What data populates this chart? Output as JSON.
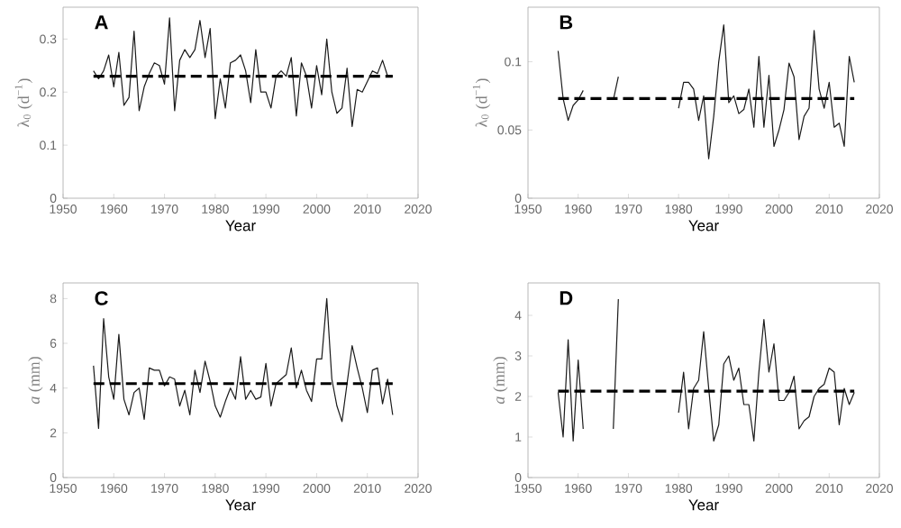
{
  "chart_data": [
    {
      "type": "line",
      "annotations": [
        "A"
      ],
      "xlabel": "Year",
      "ylabel": "λ$_{0}$ (d$^{−1}$)",
      "xlim": [
        1950,
        2020
      ],
      "xticks": [
        1950,
        1960,
        1970,
        1980,
        1990,
        2000,
        2010,
        2020
      ],
      "ylim": [
        0,
        0.36
      ],
      "yticks": [
        0,
        0.1,
        0.2,
        0.3
      ],
      "grid": false,
      "marker": "none",
      "line_style": "solid",
      "x": [
        1956,
        1957,
        1958,
        1959,
        1960,
        1961,
        1962,
        1963,
        1964,
        1965,
        1966,
        1967,
        1968,
        1969,
        1970,
        1971,
        1972,
        1973,
        1974,
        1975,
        1976,
        1977,
        1978,
        1979,
        1980,
        1981,
        1982,
        1983,
        1984,
        1985,
        1986,
        1987,
        1988,
        1989,
        1990,
        1991,
        1992,
        1993,
        1994,
        1995,
        1996,
        1997,
        1998,
        1999,
        2000,
        2001,
        2002,
        2003,
        2004,
        2005,
        2006,
        2007,
        2008,
        2009,
        2010,
        2011,
        2012,
        2013,
        2014,
        2015
      ],
      "series": [
        {
          "color": "#1a1a1a",
          "values": [
            0.24,
            0.225,
            0.24,
            0.27,
            0.21,
            0.275,
            0.175,
            0.19,
            0.315,
            0.165,
            0.21,
            0.235,
            0.255,
            0.25,
            0.215,
            0.34,
            0.165,
            0.26,
            0.28,
            0.265,
            0.28,
            0.335,
            0.265,
            0.32,
            0.15,
            0.225,
            0.17,
            0.255,
            0.26,
            0.27,
            0.24,
            0.18,
            0.28,
            0.2,
            0.2,
            0.17,
            0.23,
            0.24,
            0.23,
            0.265,
            0.155,
            0.255,
            0.23,
            0.17,
            0.25,
            0.195,
            0.3,
            0.2,
            0.16,
            0.17,
            0.245,
            0.135,
            0.205,
            0.2,
            0.22,
            0.24,
            0.235,
            0.26,
            0.23,
            0.23
          ]
        }
      ],
      "ref_lines": [
        {
          "axis": "y",
          "value": 0.23,
          "color": "#000000",
          "line_style": "dashed"
        }
      ]
    },
    {
      "type": "line",
      "annotations": [
        "B"
      ],
      "xlabel": "Year",
      "ylabel": "λ$_{0}$ (d$^{−1}$)",
      "xlim": [
        1950,
        2020
      ],
      "xticks": [
        1950,
        1960,
        1970,
        1980,
        1990,
        2000,
        2010,
        2020
      ],
      "ylim": [
        0,
        0.14
      ],
      "yticks": [
        0,
        0.05,
        0.1
      ],
      "grid": false,
      "marker": "none",
      "line_style": "solid",
      "x": [
        1956,
        1957,
        1958,
        1959,
        1960,
        1961,
        1962,
        1963,
        1964,
        1965,
        1966,
        1967,
        1968,
        1969,
        1970,
        1971,
        1972,
        1973,
        1974,
        1975,
        1976,
        1977,
        1978,
        1979,
        1980,
        1981,
        1982,
        1983,
        1984,
        1985,
        1986,
        1987,
        1988,
        1989,
        1990,
        1991,
        1992,
        1993,
        1994,
        1995,
        1996,
        1997,
        1998,
        1999,
        2000,
        2001,
        2002,
        2003,
        2004,
        2005,
        2006,
        2007,
        2008,
        2009,
        2010,
        2011,
        2012,
        2013,
        2014,
        2015
      ],
      "series": [
        {
          "color": "#1a1a1a",
          "values": [
            0.108,
            0.073,
            0.057,
            0.068,
            0.072,
            0.079,
            null,
            null,
            null,
            null,
            null,
            0.072,
            0.089,
            null,
            null,
            null,
            null,
            null,
            null,
            null,
            null,
            null,
            null,
            null,
            0.066,
            0.085,
            0.085,
            0.08,
            0.057,
            0.075,
            0.029,
            0.06,
            0.1,
            0.127,
            0.07,
            0.075,
            0.062,
            0.065,
            0.08,
            0.052,
            0.104,
            0.052,
            0.09,
            0.038,
            0.05,
            0.065,
            0.099,
            0.089,
            0.043,
            0.06,
            0.066,
            0.123,
            0.08,
            0.066,
            0.085,
            0.052,
            0.055,
            0.038,
            0.104,
            0.085
          ]
        }
      ],
      "ref_lines": [
        {
          "axis": "y",
          "value": 0.073,
          "color": "#000000",
          "line_style": "dashed"
        }
      ]
    },
    {
      "type": "line",
      "annotations": [
        "C"
      ],
      "xlabel": "Year",
      "ylabel": "*a* (mm)",
      "xlim": [
        1950,
        2020
      ],
      "xticks": [
        1950,
        1960,
        1970,
        1980,
        1990,
        2000,
        2010,
        2020
      ],
      "ylim": [
        0,
        8.7
      ],
      "yticks": [
        0,
        2,
        4,
        6,
        8
      ],
      "grid": false,
      "marker": "none",
      "line_style": "solid",
      "x": [
        1956,
        1957,
        1958,
        1959,
        1960,
        1961,
        1962,
        1963,
        1964,
        1965,
        1966,
        1967,
        1968,
        1969,
        1970,
        1971,
        1972,
        1973,
        1974,
        1975,
        1976,
        1977,
        1978,
        1979,
        1980,
        1981,
        1982,
        1983,
        1984,
        1985,
        1986,
        1987,
        1988,
        1989,
        1990,
        1991,
        1992,
        1993,
        1994,
        1995,
        1996,
        1997,
        1998,
        1999,
        2000,
        2001,
        2002,
        2003,
        2004,
        2005,
        2006,
        2007,
        2008,
        2009,
        2010,
        2011,
        2012,
        2013,
        2014,
        2015
      ],
      "series": [
        {
          "color": "#1a1a1a",
          "values": [
            5.0,
            2.2,
            7.1,
            4.5,
            3.5,
            6.4,
            3.5,
            2.8,
            3.8,
            4.0,
            2.6,
            4.9,
            4.8,
            4.8,
            4.1,
            4.5,
            4.4,
            3.2,
            3.9,
            2.8,
            4.8,
            3.8,
            5.2,
            4.3,
            3.2,
            2.7,
            3.4,
            4.0,
            3.5,
            5.4,
            3.5,
            3.9,
            3.5,
            3.6,
            5.1,
            3.2,
            4.2,
            4.4,
            4.6,
            5.8,
            4.0,
            4.8,
            3.9,
            3.4,
            5.3,
            5.3,
            8.0,
            4.4,
            3.2,
            2.5,
            4.2,
            5.9,
            4.9,
            4.0,
            2.9,
            4.8,
            4.9,
            3.3,
            4.4,
            2.8
          ]
        }
      ],
      "ref_lines": [
        {
          "axis": "y",
          "value": 4.2,
          "color": "#000000",
          "line_style": "dashed"
        }
      ]
    },
    {
      "type": "line",
      "annotations": [
        "D"
      ],
      "xlabel": "Year",
      "ylabel": "*a* (mm)",
      "xlim": [
        1950,
        2020
      ],
      "xticks": [
        1950,
        1960,
        1970,
        1980,
        1990,
        2000,
        2010,
        2020
      ],
      "ylim": [
        0,
        4.8
      ],
      "yticks": [
        0,
        1,
        2,
        3,
        4
      ],
      "grid": false,
      "marker": "none",
      "line_style": "solid",
      "x": [
        1956,
        1957,
        1958,
        1959,
        1960,
        1961,
        1962,
        1963,
        1964,
        1965,
        1966,
        1967,
        1968,
        1969,
        1970,
        1971,
        1972,
        1973,
        1974,
        1975,
        1976,
        1977,
        1978,
        1979,
        1980,
        1981,
        1982,
        1983,
        1984,
        1985,
        1986,
        1987,
        1988,
        1989,
        1990,
        1991,
        1992,
        1993,
        1994,
        1995,
        1996,
        1997,
        1998,
        1999,
        2000,
        2001,
        2002,
        2003,
        2004,
        2005,
        2006,
        2007,
        2008,
        2009,
        2010,
        2011,
        2012,
        2013,
        2014,
        2015
      ],
      "series": [
        {
          "color": "#1a1a1a",
          "values": [
            2.1,
            1.0,
            3.4,
            0.9,
            2.9,
            1.2,
            null,
            null,
            null,
            null,
            null,
            1.2,
            4.4,
            null,
            null,
            null,
            null,
            null,
            null,
            null,
            null,
            null,
            null,
            null,
            1.6,
            2.6,
            1.2,
            2.2,
            2.4,
            3.6,
            2.2,
            0.9,
            1.3,
            2.8,
            3.0,
            2.4,
            2.7,
            1.8,
            1.8,
            0.9,
            2.6,
            3.9,
            2.6,
            3.3,
            1.9,
            1.9,
            2.1,
            2.5,
            1.2,
            1.4,
            1.5,
            2.0,
            2.2,
            2.3,
            2.7,
            2.6,
            1.3,
            2.2,
            1.8,
            2.1
          ]
        }
      ],
      "ref_lines": [
        {
          "axis": "y",
          "value": 2.13,
          "color": "#000000",
          "line_style": "dashed"
        }
      ]
    }
  ]
}
